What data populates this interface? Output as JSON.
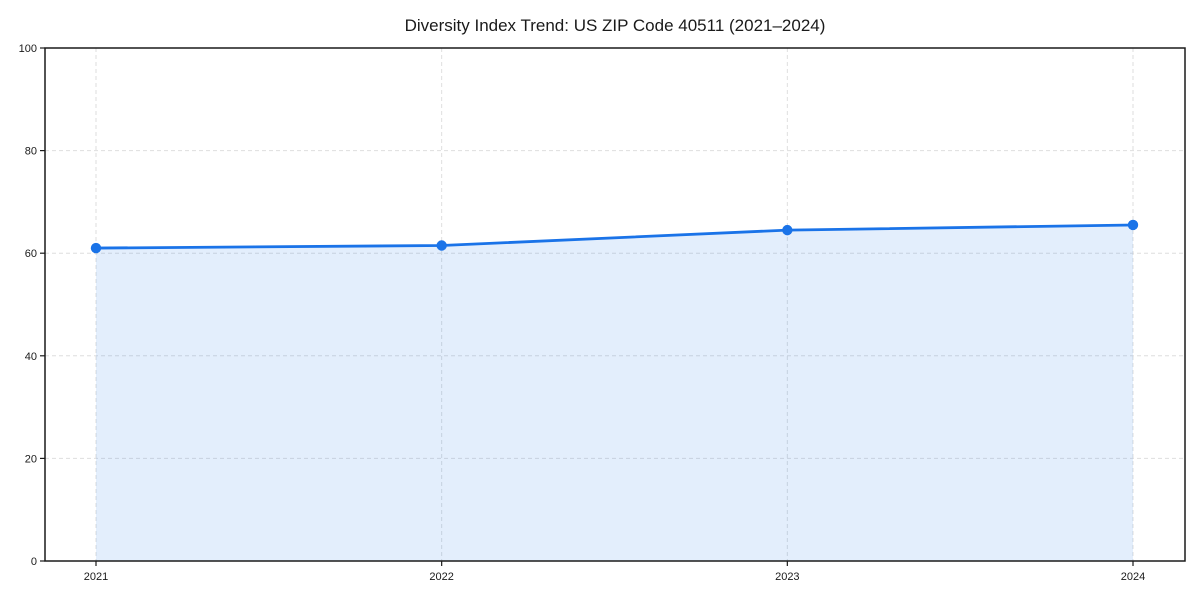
{
  "chart_data": {
    "type": "line",
    "title": "Diversity Index Trend: US ZIP Code 40511 (2021–2024)",
    "categories": [
      "2021",
      "2022",
      "2023",
      "2024"
    ],
    "values": [
      61,
      61.5,
      64.5,
      65.5
    ],
    "xlabel": "",
    "ylabel": "",
    "ylim": [
      0,
      100
    ],
    "yticks": [
      0,
      20,
      40,
      60,
      80,
      100
    ],
    "grid": true,
    "grid_style": "dashed",
    "area_fill": true,
    "markers": "circle",
    "legend": "none",
    "colors": {
      "line": "#1a73e8",
      "area": "#1a73e8",
      "area_opacity": 0.12,
      "grid": "#dedede",
      "axis": "#1a1a1a",
      "text": "#1a1a1a",
      "background": "#ffffff"
    }
  }
}
